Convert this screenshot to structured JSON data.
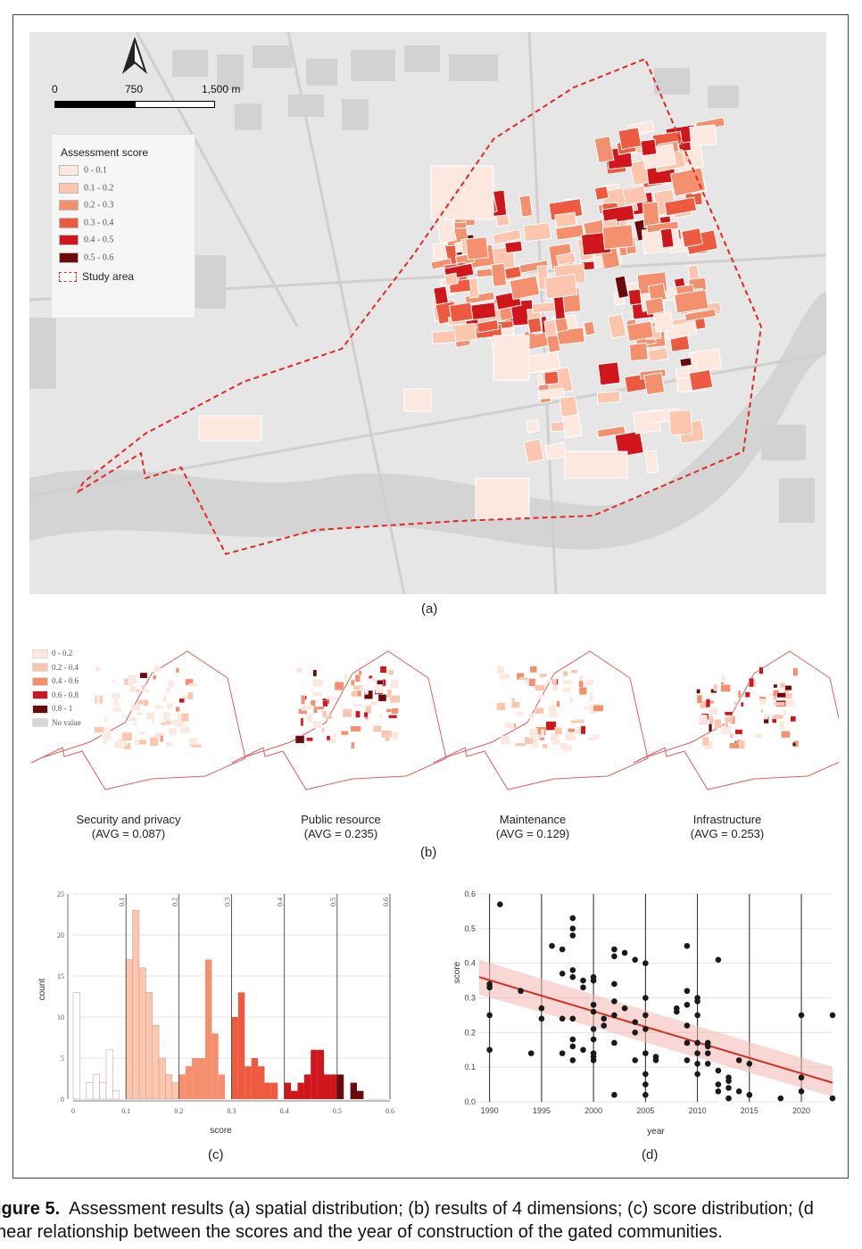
{
  "panel_a": {
    "scale_labels": [
      "0",
      "750",
      "1,500 m"
    ],
    "legend_title": "Assessment score",
    "legend_items": [
      {
        "label": "0 - 0.1",
        "color": "#fde8df"
      },
      {
        "label": "0.1 - 0.2",
        "color": "#fbc6ad"
      },
      {
        "label": "0.2 - 0.3",
        "color": "#f4906e"
      },
      {
        "label": "0.3 - 0.4",
        "color": "#ee5a40"
      },
      {
        "label": "0.4 - 0.5",
        "color": "#d0161b"
      },
      {
        "label": "0.5 - 0.6",
        "color": "#6a0a0d"
      }
    ],
    "study_area_label": "Study area",
    "caption": "(a)"
  },
  "panel_b": {
    "legend_items": [
      {
        "label": "0 - 0.2",
        "color": "#fde8df"
      },
      {
        "label": "0.2 - 0.4",
        "color": "#fbc6ad"
      },
      {
        "label": "0.4 - 0.6",
        "color": "#f4906e"
      },
      {
        "label": "0.6 - 0.8",
        "color": "#d0161b"
      },
      {
        "label": "0.8 - 1",
        "color": "#6a0a0d"
      },
      {
        "label": "No value",
        "color": "#d6d6d6"
      }
    ],
    "maps": [
      {
        "name": "Security and privacy",
        "avg": "(AVG = 0.087)"
      },
      {
        "name": "Public resource",
        "avg": "(AVG = 0.235)"
      },
      {
        "name": "Maintenance",
        "avg": "(AVG = 0.129)"
      },
      {
        "name": "Infrastructure",
        "avg": "(AVG = 0.253)"
      }
    ],
    "caption": "(b)"
  },
  "chart_data": [
    {
      "type": "bar",
      "xlabel": "score",
      "ylabel": "count",
      "xlim": [
        0,
        0.6
      ],
      "ylim": [
        0,
        25
      ],
      "x_ticks": [
        "0",
        "0.1",
        "0.2",
        "0.3",
        "0.4",
        "0.5",
        "0.6"
      ],
      "y_ticks": [
        "0",
        "5",
        "10",
        "15",
        "20",
        "25"
      ],
      "top_tick_labels": [
        "0.1",
        "0.2",
        "0.3",
        "0.4",
        "0.5",
        "0.6"
      ],
      "bin_width": 0.0125,
      "bin_starts": [
        0,
        0.0125,
        0.025,
        0.0375,
        0.05,
        0.0625,
        0.075,
        0.1,
        0.1125,
        0.125,
        0.1375,
        0.15,
        0.1625,
        0.175,
        0.1875,
        0.2,
        0.2125,
        0.225,
        0.2375,
        0.25,
        0.2625,
        0.275,
        0.3,
        0.3125,
        0.325,
        0.3375,
        0.35,
        0.3625,
        0.375,
        0.4,
        0.4125,
        0.425,
        0.4375,
        0.45,
        0.4625,
        0.475,
        0.4875,
        0.5,
        0.5125,
        0.525,
        0.5375,
        0.55
      ],
      "counts": [
        13,
        0,
        2,
        3,
        2,
        6,
        1,
        17,
        23,
        16,
        13,
        9,
        5,
        3,
        2,
        3,
        4,
        5,
        5,
        17,
        8,
        3,
        10,
        13,
        4,
        5,
        4,
        2,
        2,
        2,
        1,
        2,
        3,
        6,
        6,
        3,
        3,
        3,
        0,
        2,
        1,
        0
      ],
      "class_colors": [
        "#ffffff",
        "#fbc6ad",
        "#f4906e",
        "#ee5a40",
        "#d0161b",
        "#6a0a0d"
      ],
      "caption": "(c)"
    },
    {
      "type": "scatter",
      "xlabel": "year",
      "ylabel": "score",
      "xlim": [
        1989,
        2023
      ],
      "ylim": [
        0,
        0.6
      ],
      "x_ticks": [
        "1990",
        "1995",
        "2000",
        "2005",
        "2010",
        "2015",
        "2020"
      ],
      "y_ticks": [
        "0.0",
        "0.1",
        "0.2",
        "0.3",
        "0.4",
        "0.5",
        "0.6"
      ],
      "points": [
        [
          1990,
          0.33
        ],
        [
          1990,
          0.34
        ],
        [
          1990,
          0.25
        ],
        [
          1990,
          0.15
        ],
        [
          1991,
          0.57
        ],
        [
          1993,
          0.32
        ],
        [
          1994,
          0.14
        ],
        [
          1995,
          0.27
        ],
        [
          1995,
          0.24
        ],
        [
          1996,
          0.45
        ],
        [
          1997,
          0.44
        ],
        [
          1997,
          0.37
        ],
        [
          1997,
          0.24
        ],
        [
          1997,
          0.14
        ],
        [
          1998,
          0.53
        ],
        [
          1998,
          0.5
        ],
        [
          1998,
          0.48
        ],
        [
          1998,
          0.38
        ],
        [
          1998,
          0.36
        ],
        [
          1998,
          0.24
        ],
        [
          1998,
          0.18
        ],
        [
          1998,
          0.16
        ],
        [
          1998,
          0.12
        ],
        [
          1999,
          0.35
        ],
        [
          1999,
          0.33
        ],
        [
          1999,
          0.15
        ],
        [
          2000,
          0.36
        ],
        [
          2000,
          0.35
        ],
        [
          2000,
          0.28
        ],
        [
          2000,
          0.26
        ],
        [
          2000,
          0.21
        ],
        [
          2000,
          0.18
        ],
        [
          2000,
          0.14
        ],
        [
          2000,
          0.13
        ],
        [
          2000,
          0.12
        ],
        [
          2001,
          0.24
        ],
        [
          2001,
          0.22
        ],
        [
          2002,
          0.44
        ],
        [
          2002,
          0.42
        ],
        [
          2002,
          0.34
        ],
        [
          2002,
          0.29
        ],
        [
          2002,
          0.25
        ],
        [
          2002,
          0.17
        ],
        [
          2002,
          0.02
        ],
        [
          2003,
          0.43
        ],
        [
          2003,
          0.27
        ],
        [
          2004,
          0.41
        ],
        [
          2004,
          0.23
        ],
        [
          2004,
          0.2
        ],
        [
          2004,
          0.12
        ],
        [
          2005,
          0.4
        ],
        [
          2005,
          0.3
        ],
        [
          2005,
          0.25
        ],
        [
          2005,
          0.21
        ],
        [
          2005,
          0.14
        ],
        [
          2005,
          0.08
        ],
        [
          2005,
          0.05
        ],
        [
          2005,
          0.02
        ],
        [
          2006,
          0.13
        ],
        [
          2006,
          0.12
        ],
        [
          2008,
          0.27
        ],
        [
          2008,
          0.26
        ],
        [
          2009,
          0.45
        ],
        [
          2009,
          0.32
        ],
        [
          2009,
          0.28
        ],
        [
          2009,
          0.22
        ],
        [
          2009,
          0.17
        ],
        [
          2009,
          0.12
        ],
        [
          2010,
          0.3
        ],
        [
          2010,
          0.29
        ],
        [
          2010,
          0.25
        ],
        [
          2010,
          0.17
        ],
        [
          2010,
          0.14
        ],
        [
          2010,
          0.11
        ],
        [
          2010,
          0.08
        ],
        [
          2011,
          0.17
        ],
        [
          2011,
          0.16
        ],
        [
          2011,
          0.14
        ],
        [
          2011,
          0.11
        ],
        [
          2012,
          0.41
        ],
        [
          2012,
          0.09
        ],
        [
          2012,
          0.05
        ],
        [
          2012,
          0.03
        ],
        [
          2013,
          0.07
        ],
        [
          2013,
          0.06
        ],
        [
          2013,
          0.04
        ],
        [
          2013,
          0.01
        ],
        [
          2014,
          0.12
        ],
        [
          2014,
          0.03
        ],
        [
          2015,
          0.11
        ],
        [
          2015,
          0.02
        ],
        [
          2018,
          0.01
        ],
        [
          2020,
          0.25
        ],
        [
          2020,
          0.07
        ],
        [
          2020,
          0.03
        ],
        [
          2023,
          0.25
        ],
        [
          2023,
          0.01
        ]
      ],
      "trend_line": {
        "x": [
          1989,
          2023
        ],
        "y": [
          0.36,
          0.055
        ]
      },
      "ci_upper": [
        0.41,
        0.1
      ],
      "ci_lower": [
        0.31,
        0.015
      ],
      "caption": "(d)"
    }
  ],
  "figure_caption": {
    "label": "igure 5.",
    "text": "Assessment results (a) spatial distribution; (b) results of 4 dimensions; (c) score distribution; (d",
    "line2": "near relationship between the scores and the year of construction of the gated communities."
  }
}
